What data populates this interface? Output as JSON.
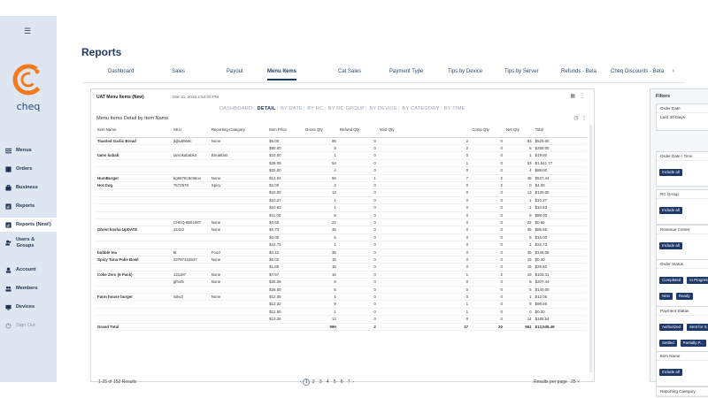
{
  "sidebar": {
    "logo_text": "cheq",
    "items": [
      {
        "label": "Menus",
        "icon": "menu-icon"
      },
      {
        "label": "Orders",
        "icon": "orders-icon"
      },
      {
        "label": "Business",
        "icon": "business-icon"
      },
      {
        "label": "Reports",
        "icon": "reports-icon"
      },
      {
        "label": "Reports (New!)",
        "icon": "reports-new-icon"
      },
      {
        "label": "Users &",
        "label2": "Groups",
        "icon": "users-icon"
      },
      {
        "label": "Account",
        "icon": "account-icon"
      },
      {
        "label": "Members",
        "icon": "members-icon"
      },
      {
        "label": "Devices",
        "icon": "devices-icon"
      },
      {
        "label": "Sign Out",
        "icon": "signout-icon"
      }
    ],
    "colors": {
      "logo": "#f47a20",
      "active": "#ffffff",
      "bg": "#dde6f1"
    }
  },
  "page": {
    "title": "Reports"
  },
  "tabs": [
    "Dashboard",
    "Sales",
    "Payout",
    "Menu Items",
    "Cat Sales",
    "Payment Type",
    "Tips by Device",
    "Tips by Server",
    "Refunds - Beta",
    "Cheq Discounts - Beta"
  ],
  "report": {
    "title": "UAT Menu Items (New)",
    "date": "Mar 31, 2025 2:54:00 PM",
    "subtabs": [
      "DASHBOARD",
      "DETAIL",
      "BY DATE",
      "BY RC",
      "BY RC GROUP",
      "BY DEVICE",
      "BY CATEGORY",
      "BY TIME"
    ],
    "table_title": "Menu Items Detail by Item Name",
    "columns": [
      "Item Name",
      "SKU",
      "Reporting Category",
      "Item Price",
      "Gross Qty",
      "Refund Qty",
      "Void Qty",
      "Comp Qty",
      "Net Qty",
      "Total"
    ],
    "rows": [
      [
        "Toasted Garlic Bread",
        "jkjbv8959c",
        "None",
        "$5.00",
        "95",
        "0",
        "2",
        "0",
        "93",
        "$529.00"
      ],
      [
        "",
        "",
        "",
        "$60.00",
        "8",
        "0",
        "2",
        "0",
        "6",
        "$258.00"
      ],
      [
        "tamo kabab",
        "tamokababk4",
        "Breakfast",
        "$10.00",
        "1",
        "0",
        "0",
        "0",
        "1",
        "$19.00"
      ],
      [
        "",
        "",
        "",
        "$29.09",
        "54",
        "0",
        "1",
        "0",
        "53",
        "$1,541.77"
      ],
      [
        "",
        "",
        "",
        "$32.00",
        "4",
        "0",
        "0",
        "0",
        "4",
        "$88.00"
      ],
      [
        "HumBurger",
        "bg6678c8c95oo",
        "None",
        "$13.04",
        "56",
        "1",
        "7",
        "2",
        "48",
        "$527.44"
      ],
      [
        "Hot Dog",
        "7672578",
        "Spicy",
        "$2.00",
        "2",
        "0",
        "0",
        "2",
        "0",
        "$4.00"
      ],
      [
        "",
        "",
        "",
        "$10.00",
        "13",
        "0",
        "0",
        "0",
        "13",
        "$130.00"
      ],
      [
        "",
        "",
        "",
        "$10.27",
        "1",
        "0",
        "0",
        "0",
        "1",
        "$10.27"
      ],
      [
        "",
        "",
        "",
        "$10.63",
        "1",
        "0",
        "0",
        "0",
        "1",
        "$10.63"
      ],
      [
        "",
        "",
        "",
        "$11.00",
        "8",
        "0",
        "0",
        "0",
        "8",
        "$88.00"
      ],
      [
        "",
        "CHEQ-8801687",
        "None",
        "$0.60",
        "22",
        "0",
        "0",
        "0",
        "22",
        "$0.66"
      ],
      [
        "Ghost kosha UpDATE",
        "44422",
        "None",
        "$2.73",
        "35",
        "0",
        "0",
        "0",
        "35",
        "$95.55"
      ],
      [
        "",
        "",
        "",
        "$3.00",
        "5",
        "0",
        "0",
        "0",
        "5",
        "$15.00"
      ],
      [
        "",
        "",
        "",
        "$22.73",
        "1",
        "0",
        "0",
        "0",
        "1",
        "$22.73"
      ],
      [
        "bubble tea",
        "bt",
        "Food",
        "$4.12",
        "36",
        "0",
        "0",
        "0",
        "36",
        "$148.08"
      ],
      [
        "Spicy Tuna Poke Bowl",
        "23797323837",
        "None",
        "$0.02",
        "15",
        "0",
        "0",
        "0",
        "15",
        "$0.30"
      ],
      [
        "",
        "",
        "",
        "$1.85",
        "16",
        "0",
        "0",
        "0",
        "16",
        "$29.60"
      ],
      [
        "Coke Zero (6 Pack)",
        "131197",
        "None",
        "$7.97",
        "16",
        "0",
        "1",
        "2",
        "15",
        "$102.31"
      ],
      [
        "",
        "gfhi45",
        "None",
        "$25.39",
        "8",
        "0",
        "0",
        "0",
        "8",
        "$207.44"
      ],
      [
        "",
        "",
        "",
        "$28.00",
        "5",
        "0",
        "0",
        "0",
        "5",
        "$140.00"
      ],
      [
        "Farm house burger",
        "sskv2",
        "None",
        "$12.05",
        "1",
        "0",
        "0",
        "0",
        "1",
        "$12.05"
      ],
      [
        "",
        "",
        "",
        "$12.32",
        "9",
        "0",
        "1",
        "0",
        "8",
        "$98.56"
      ],
      [
        "",
        "",
        "",
        "$12.50",
        "1",
        "0",
        "1",
        "0",
        "0",
        "$0.00"
      ],
      [
        "",
        "",
        "",
        "$13.26",
        "14",
        "0",
        "0",
        "0",
        "14",
        "$185.64"
      ]
    ],
    "grand_total": [
      "Grand Total",
      "",
      "",
      "",
      "990",
      "2",
      "27",
      "20",
      "961",
      "$13,538.49"
    ],
    "results_count": "1-25 of 152 Results",
    "pages": [
      "1",
      "2",
      "3",
      "4",
      "5",
      "6",
      "7"
    ],
    "results_per_page_label": "Results per page",
    "results_per_page": "25"
  },
  "filters": {
    "title": "Filters",
    "groups": [
      {
        "label": "Order Date",
        "value": "Last 30 Days",
        "chips": []
      },
      {
        "label": "Order Date / Time",
        "value": "",
        "chips": [
          "Include all"
        ]
      },
      {
        "label": "RC Group",
        "value": "",
        "chips": [
          "Include all"
        ]
      },
      {
        "label": "Revenue Center",
        "value": "",
        "chips": [
          "Include all"
        ]
      },
      {
        "label": "Order Status",
        "value": "",
        "chips": [
          "Completed",
          "In Progress",
          "New",
          "Ready"
        ]
      },
      {
        "label": "Payment Status",
        "value": "",
        "chips": [
          "Authorized",
          "Sent for S...",
          "Settled",
          "Partially P..."
        ]
      },
      {
        "label": "Item Name",
        "value": "",
        "chips": [
          "Include all"
        ]
      },
      {
        "label": "Reporting Category",
        "value": "",
        "chips": []
      }
    ]
  }
}
